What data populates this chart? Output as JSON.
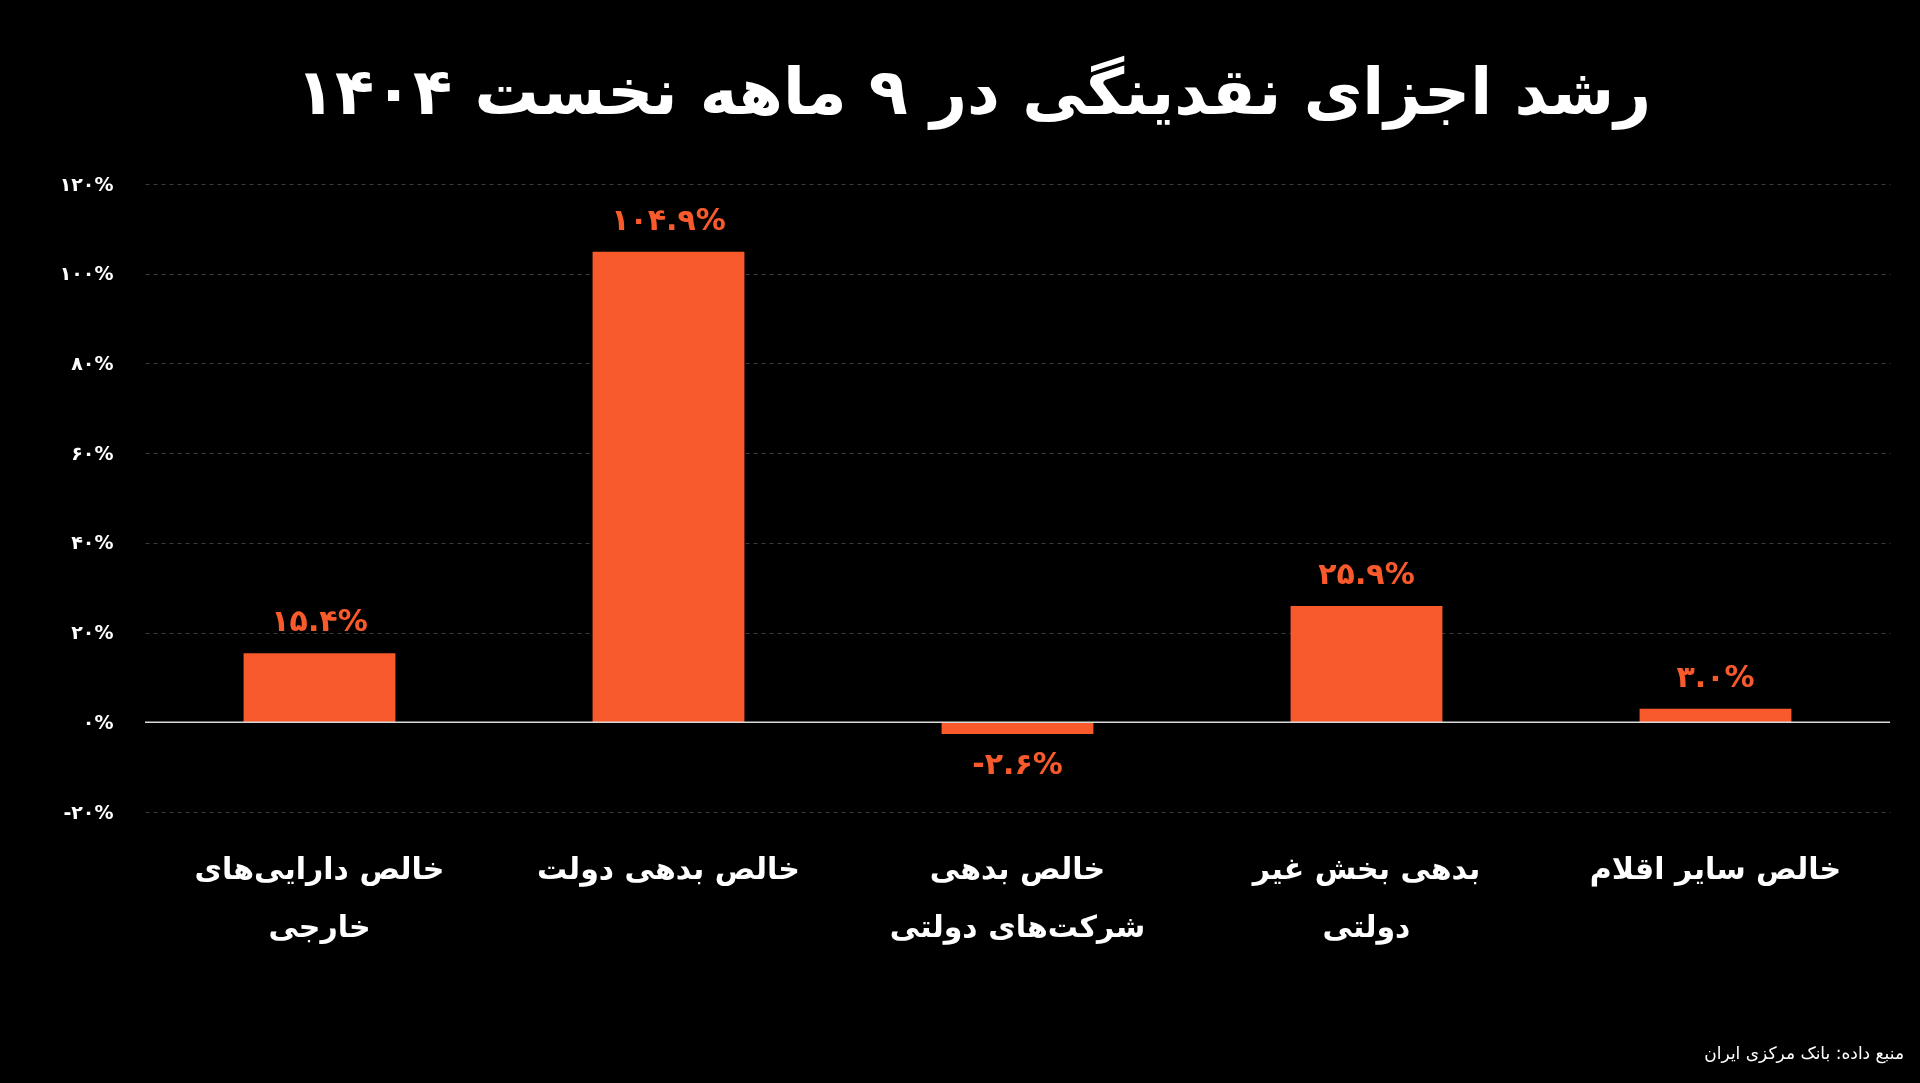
{
  "chart_data": {
    "type": "bar",
    "title": "رشد اجزای نقدینگی در ۹ ماهه نخست ۱۴۰۴",
    "categories": [
      "خالص دارایی‌های خارجی",
      "خالص بدهی دولت",
      "خالص بدهی شرکت‌های دولتی",
      "بدهی بخش غیر دولتی",
      "خالص سایر اقلام"
    ],
    "values": [
      15.4,
      104.9,
      -2.6,
      25.9,
      3.0
    ],
    "color": "#f95a2c",
    "value_labels": [
      "۱۵.۴%",
      "۱۰۴.۹%",
      "-۲.۶%",
      "۲۵.۹%",
      "۳.۰%"
    ],
    "ylim": [
      -20,
      120
    ],
    "yticks": [
      {
        "value": -20,
        "label": "-۲۰%"
      },
      {
        "value": 0,
        "label": "۰%"
      },
      {
        "value": 20,
        "label": "۲۰%"
      },
      {
        "value": 40,
        "label": "۴۰%"
      },
      {
        "value": 60,
        "label": "۶۰%"
      },
      {
        "value": 80,
        "label": "۸۰%"
      },
      {
        "value": 100,
        "label": "۱۰۰%"
      },
      {
        "value": 120,
        "label": "۱۲۰%"
      }
    ],
    "grid": "y",
    "ref_lines": [
      {
        "axis": "y",
        "value": 0,
        "color": "#d9d9d9"
      }
    ],
    "annotations": [
      "منبع داده: بانک مرکزی ایران"
    ]
  }
}
